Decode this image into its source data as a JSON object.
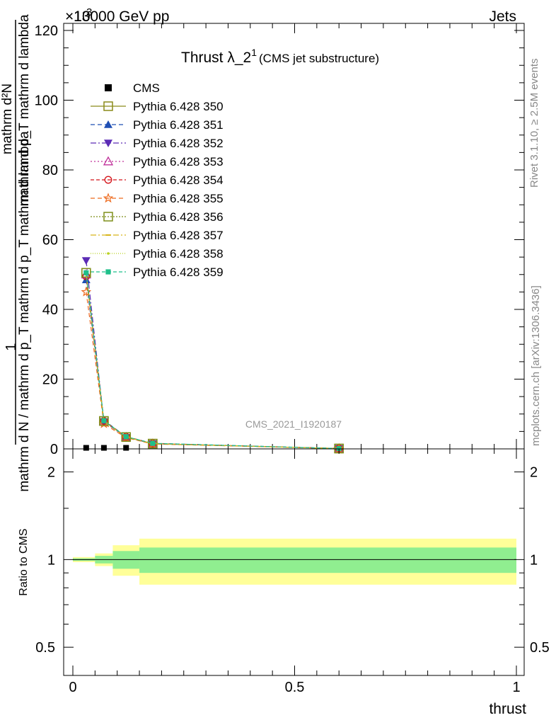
{
  "header": {
    "collision": "13000 GeV pp",
    "category": "Jets",
    "exponent_prefix": "×10",
    "exponent_power": "3"
  },
  "side_labels": {
    "rivet": "Rivet 3.1.10, ≥ 2.5M events",
    "mcplots": "mcplots.cern.ch [arXiv:1306.3436]"
  },
  "chart_data": [
    {
      "type": "line",
      "title_main": "Thrust λ_2",
      "title_sup": "1",
      "title_sub": "(CMS jet substructure)",
      "watermark": "CMS_2021_I1920187",
      "ylabel_top": "1",
      "ylabel_num": "mathrm d²N",
      "ylabel_mid": "mathrm d p_T mathrm d lambda",
      "ylabel_den": "mathrm d N / mathrm d p_T mathrm d p_T mathrm d lambda",
      "xlim": [
        0,
        1
      ],
      "ylim": [
        0,
        120
      ],
      "y_scale": 1000,
      "y_ticks": [
        "0",
        "20",
        "40",
        "60",
        "80",
        "100",
        "120"
      ],
      "x": [
        0.03,
        0.07,
        0.12,
        0.18,
        0.6
      ],
      "data": {
        "name": "CMS",
        "values": [
          0.3,
          0.3,
          0.3,
          0,
          0
        ]
      },
      "series": [
        {
          "name": "Pythia 6.428 350",
          "color": "#8b8b1a",
          "marker": "square-open",
          "dash": "",
          "values": [
            50.5,
            8.0,
            3.4,
            1.5,
            0.1
          ]
        },
        {
          "name": "Pythia 6.428 351",
          "color": "#1f4fb4",
          "marker": "triangle-up",
          "dash": "6,4",
          "values": [
            48.5,
            8.2,
            3.5,
            1.6,
            0.1
          ]
        },
        {
          "name": "Pythia 6.428 352",
          "color": "#5b2bb5",
          "marker": "triangle-down",
          "dash": "8,3,2,3",
          "values": [
            54.0,
            7.8,
            3.3,
            1.5,
            0.1
          ]
        },
        {
          "name": "Pythia 6.428 353",
          "color": "#c0309a",
          "marker": "triangle-open",
          "dash": "2,3",
          "values": [
            50.0,
            7.9,
            3.4,
            1.5,
            0.1
          ]
        },
        {
          "name": "Pythia 6.428 354",
          "color": "#d4141a",
          "marker": "circle-open",
          "dash": "5,3",
          "values": [
            49.5,
            8.0,
            3.5,
            1.5,
            0.1
          ]
        },
        {
          "name": "Pythia 6.428 355",
          "color": "#ee6a1e",
          "marker": "star-open",
          "dash": "6,4",
          "values": [
            45.0,
            7.2,
            3.2,
            1.4,
            0.1
          ]
        },
        {
          "name": "Pythia 6.428 356",
          "color": "#7f8f1a",
          "marker": "square-open",
          "dash": "2,2",
          "values": [
            50.5,
            8.0,
            3.4,
            1.5,
            0.1
          ]
        },
        {
          "name": "Pythia 6.428 357",
          "color": "#d8b41a",
          "marker": "dash",
          "dash": "8,3,2,3",
          "values": [
            50.0,
            7.9,
            3.4,
            1.5,
            0.1
          ]
        },
        {
          "name": "Pythia 6.428 358",
          "color": "#b8d01a",
          "marker": "dot",
          "dash": "1,2",
          "values": [
            50.0,
            7.9,
            3.4,
            1.5,
            0.1
          ]
        },
        {
          "name": "Pythia 6.428 359",
          "color": "#1fbf8a",
          "marker": "square-filled",
          "dash": "5,3",
          "values": [
            50.5,
            8.1,
            3.5,
            1.6,
            0.1
          ]
        }
      ]
    },
    {
      "type": "area",
      "ylabel": "Ratio to CMS",
      "xlabel": "thrust",
      "ylim": [
        0.4,
        2.4
      ],
      "y_scale": "log",
      "y_ticks": [
        0.5,
        1,
        2
      ],
      "x_ticks": [
        0,
        0.5,
        1
      ],
      "x_tick_labels": [
        "0",
        "0.5",
        "1"
      ],
      "bins": [
        {
          "lo": 0.0,
          "hi": 0.05,
          "inner": 0.01,
          "outer": 0.02
        },
        {
          "lo": 0.05,
          "hi": 0.09,
          "inner": 0.03,
          "outer": 0.05
        },
        {
          "lo": 0.09,
          "hi": 0.15,
          "inner": 0.07,
          "outer": 0.12
        },
        {
          "lo": 0.15,
          "hi": 1.0,
          "inner": 0.1,
          "outer": 0.18
        }
      ],
      "band_inner_color": "#90ee90",
      "band_outer_color": "#ffff99"
    }
  ]
}
